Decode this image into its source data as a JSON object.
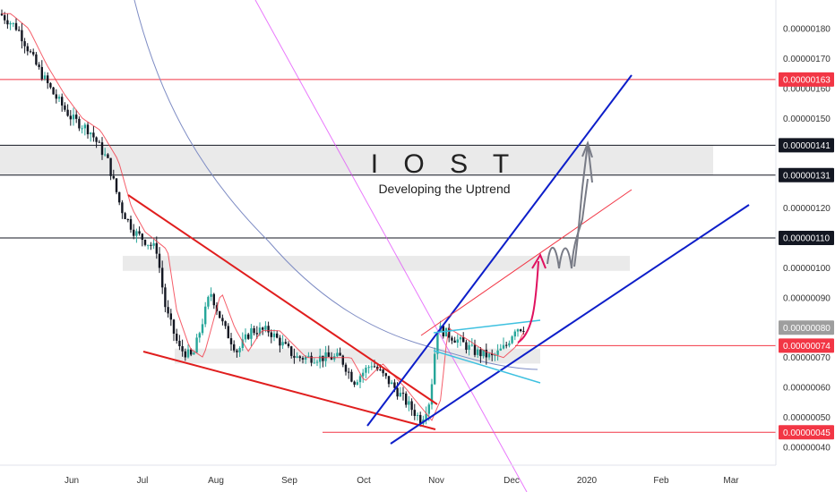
{
  "chart_data": {
    "type": "candlestick",
    "title": "I O S T",
    "subtitle": "Developing the Uptrend",
    "x_ticks": [
      "Jun",
      "Jul",
      "Aug",
      "Sep",
      "Oct",
      "Nov",
      "Dec",
      "2020",
      "Feb",
      "Mar"
    ],
    "y_ticks": [
      "0.00000180",
      "0.00000170",
      "0.00000160",
      "0.00000150",
      "0.00000120",
      "0.00000100",
      "0.00000090",
      "0.00000070",
      "0.00000060",
      "0.00000050",
      "0.00000040"
    ],
    "y_range": [
      3.5e-07,
      1.95e-06
    ],
    "price_tags": [
      {
        "label": "0.00000163",
        "value": 1.63e-06,
        "color": "#f23645"
      },
      {
        "label": "0.00000141",
        "value": 1.41e-06,
        "color": "#131722"
      },
      {
        "label": "0.00000131",
        "value": 1.31e-06,
        "color": "#131722"
      },
      {
        "label": "0.00000110",
        "value": 1.1e-06,
        "color": "#131722"
      },
      {
        "label": "0.00000080",
        "value": 8e-07,
        "color": "#9e9e9e"
      },
      {
        "label": "0.00000074",
        "value": 7.4e-07,
        "color": "#f23645"
      },
      {
        "label": "0.00000045",
        "value": 4.5e-07,
        "color": "#f23645"
      }
    ],
    "horizontal_levels": [
      {
        "value": 1.63e-06,
        "color": "#f23645"
      },
      {
        "value": 1.41e-06,
        "color": "#131722"
      },
      {
        "value": 1.31e-06,
        "color": "#131722"
      },
      {
        "value": 1.1e-06,
        "color": "#131722"
      },
      {
        "value": 7.4e-07,
        "color": "#f23645"
      },
      {
        "value": 4.5e-07,
        "color": "#f23645"
      }
    ],
    "zones": [
      {
        "from": 1.31e-06,
        "to": 1.41e-06
      },
      {
        "from": 9.9e-07,
        "to": 1.04e-06
      },
      {
        "from": 6.8e-07,
        "to": 7.3e-07
      }
    ],
    "colors": {
      "up": "#26a69a",
      "down": "#131722",
      "ma_fast": "#f23645",
      "ma_slow": "#7e8cc4",
      "trend_blue": "#0d1ec9",
      "trend_red": "#e01e1e",
      "channel_cyan": "#3ec1e0",
      "projection_pink": "#e0115f",
      "projection_gray": "#787b86"
    }
  }
}
